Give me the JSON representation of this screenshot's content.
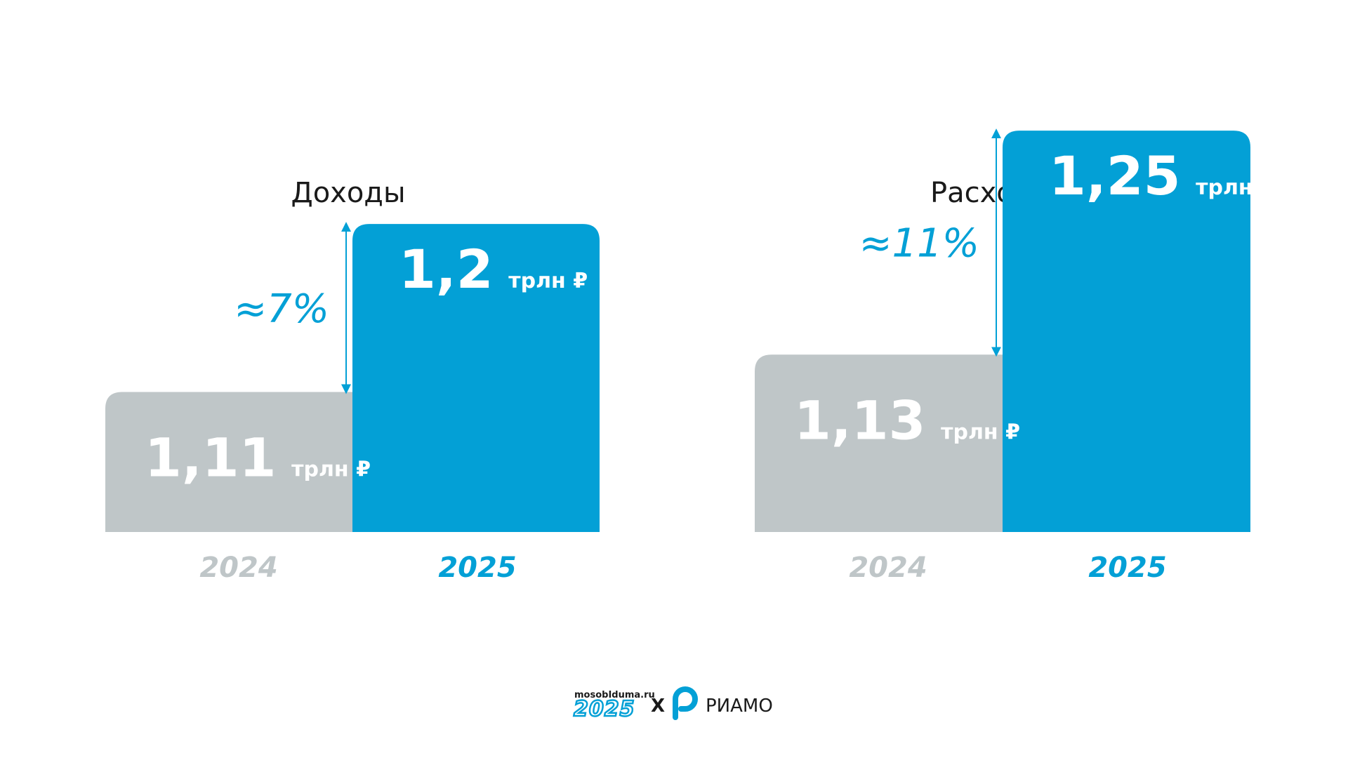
{
  "colors": {
    "prev": "#BFC6C8",
    "curr": "#03A0D6",
    "title": "#1a1a1a",
    "background": "#FFFFFF"
  },
  "chart_data": [
    {
      "type": "bar",
      "title": "Доходы",
      "categories": [
        "2024",
        "2025"
      ],
      "values": [
        1.11,
        1.2
      ],
      "value_labels": [
        "1,11",
        "1,2"
      ],
      "unit": "трлн ₽",
      "change_label": "≈7%"
    },
    {
      "type": "bar",
      "title": "Расходы",
      "categories": [
        "2024",
        "2025"
      ],
      "values": [
        1.13,
        1.25
      ],
      "value_labels": [
        "1,13",
        "1,25"
      ],
      "unit": "трлн ₽",
      "change_label": "≈11%"
    }
  ],
  "footer": {
    "site": "mosobIduma.ru",
    "year_logo": "2025",
    "separator": "X",
    "partner": "РИАМО"
  }
}
